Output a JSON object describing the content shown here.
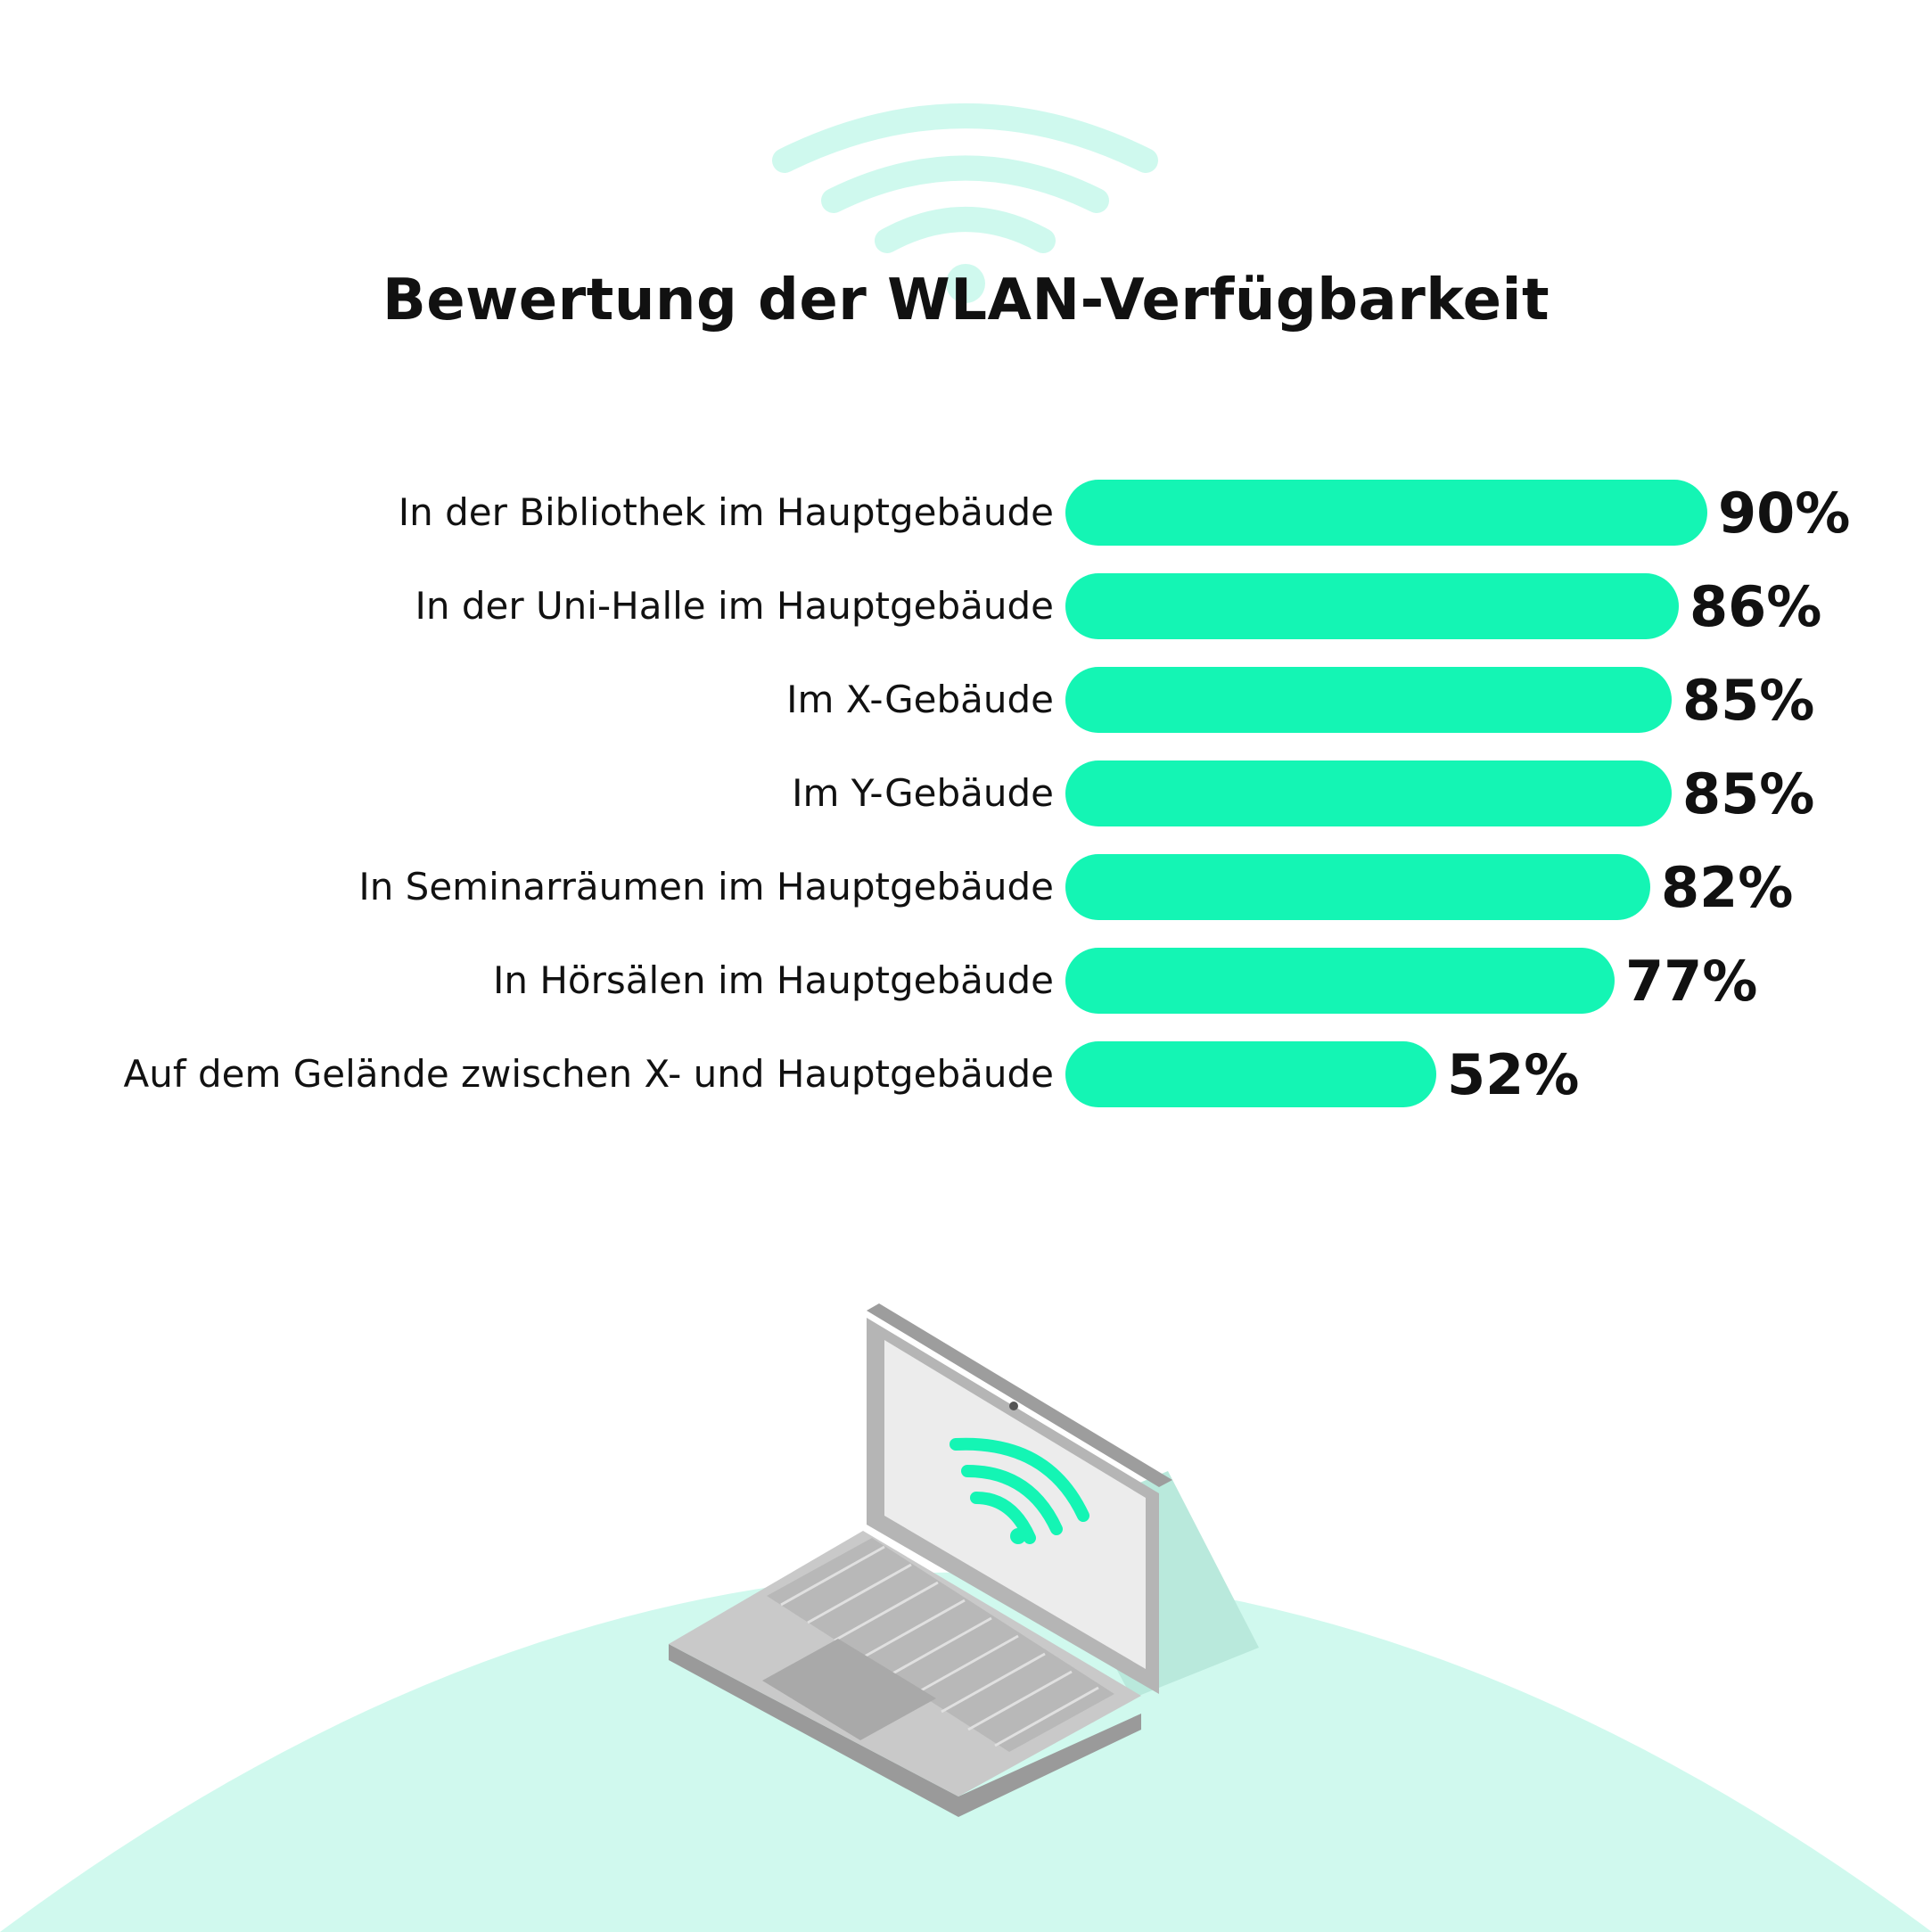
{
  "colors": {
    "bar": "#14F5B4",
    "wifi_light": "#CFF9EE",
    "hill": "#D0F9EE",
    "text": "#111111"
  },
  "icons": {
    "top": "wifi-icon",
    "bottom": "laptop-wifi-illustration"
  },
  "chart_data": {
    "type": "bar",
    "orientation": "horizontal",
    "title": "Bewertung der WLAN-Verfügbarkeit",
    "unit": "%",
    "categories": [
      "In der Bibliothek im Hauptgebäude",
      "In der Uni-Halle im Hauptgebäude",
      "Im X-Gebäude",
      "Im Y-Gebäude",
      "In Seminarräumen im Hauptgebäude",
      "In Hörsälen im Hauptgebäude",
      "Auf dem Gelände zwischen X- und Hauptgebäude"
    ],
    "values": [
      90,
      86,
      85,
      85,
      82,
      77,
      52
    ],
    "value_labels": [
      "90%",
      "86%",
      "85%",
      "85%",
      "82%",
      "77%",
      "52%"
    ],
    "xlim": [
      0,
      100
    ],
    "grid": false,
    "legend": "none"
  }
}
